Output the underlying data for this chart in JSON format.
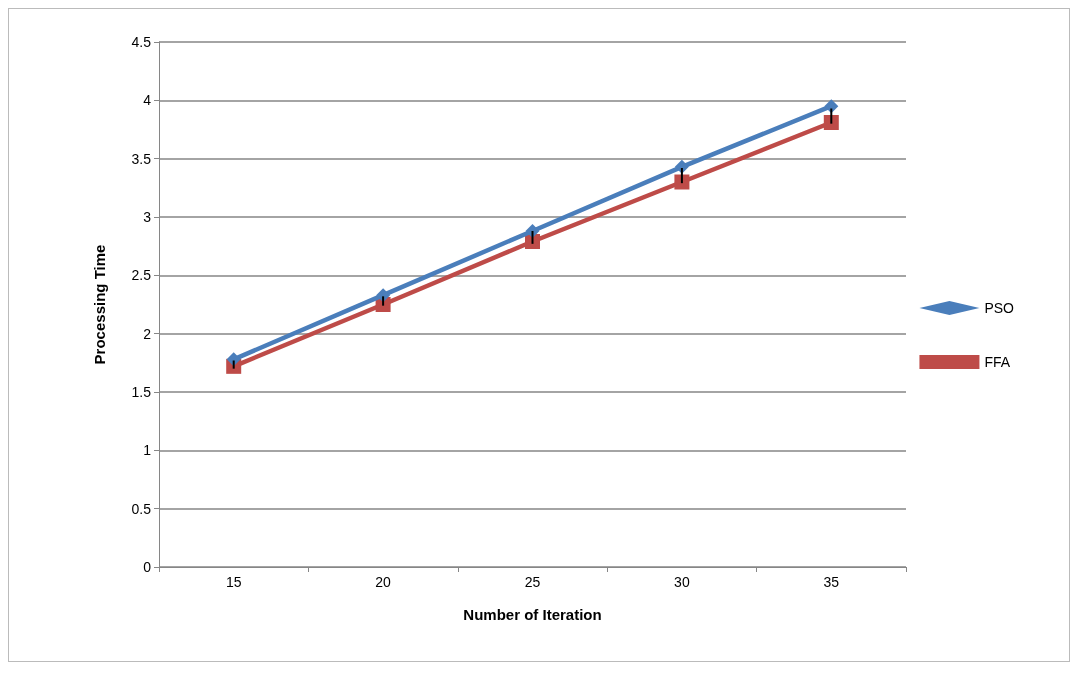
{
  "chart_data": {
    "type": "line",
    "xlabel": "Number of Iteration",
    "ylabel": "Processing Time",
    "categories": [
      "15",
      "20",
      "25",
      "30",
      "35"
    ],
    "series": [
      {
        "name": "PSO",
        "color": "#4a7ebb",
        "marker": "diamond",
        "values": [
          1.78,
          2.33,
          2.88,
          3.43,
          3.95
        ],
        "errors": [
          [
            1.7,
            1.77
          ],
          [
            2.24,
            2.32
          ],
          [
            2.77,
            2.88
          ],
          [
            3.29,
            3.42
          ],
          [
            3.8,
            3.93
          ]
        ]
      },
      {
        "name": "FFA",
        "color": "#be4b48",
        "marker": "square",
        "values": [
          1.72,
          2.25,
          2.79,
          3.3,
          3.81
        ]
      }
    ],
    "ylim": [
      0,
      4.5
    ],
    "yticks": [
      0,
      0.5,
      1,
      1.5,
      2,
      2.5,
      3,
      3.5,
      4,
      4.5
    ],
    "grid": "y",
    "legend": "right",
    "line_style": "solid"
  }
}
